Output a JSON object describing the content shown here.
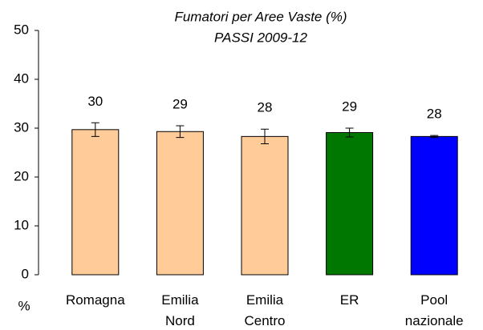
{
  "chart_data": {
    "type": "bar",
    "title": [
      "Fumatori per Aree Vaste (%)",
      "PASSI 2009-12"
    ],
    "y_label": "%",
    "categories": [
      [
        "Romagna"
      ],
      [
        "Emilia",
        "Nord"
      ],
      [
        "Emilia",
        "Centro"
      ],
      [
        "ER"
      ],
      [
        "Pool",
        "nazionale"
      ]
    ],
    "values": [
      29.7,
      29.3,
      28.3,
      29.1,
      28.3
    ],
    "value_labels": [
      "30",
      "29",
      "28",
      "29",
      "28"
    ],
    "errors": [
      1.4,
      1.2,
      1.5,
      0.9,
      0.2
    ],
    "colors": [
      "#ffcc99",
      "#ffcc99",
      "#ffcc99",
      "#007700",
      "#0000ff"
    ],
    "ylim": [
      0,
      50
    ],
    "yticks": [
      0,
      10,
      20,
      30,
      40,
      50
    ]
  }
}
